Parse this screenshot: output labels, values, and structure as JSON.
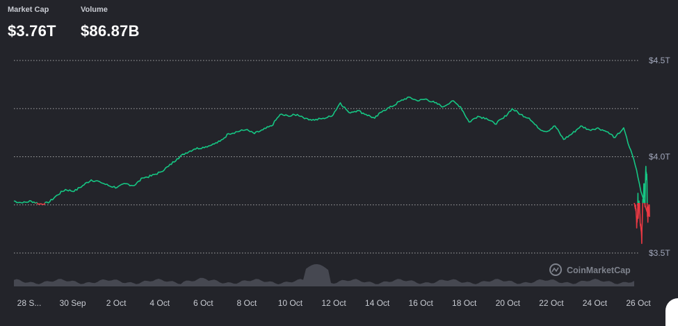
{
  "header": {
    "market_cap_label": "Market Cap",
    "market_cap_value": "$3.76T",
    "volume_label": "Volume",
    "volume_value": "$86.87B"
  },
  "watermark": "CoinMarketCap",
  "colors": {
    "up": "#16c784",
    "down": "#ea3943",
    "background": "#23242a",
    "grid": "#c8c8c8",
    "volume": "#4a4c55"
  },
  "chart_data": {
    "type": "line",
    "title": "",
    "xlabel": "",
    "ylabel": "",
    "x_tick_labels": [
      "28 S...",
      "30 Sep",
      "2 Oct",
      "4 Oct",
      "6 Oct",
      "8 Oct",
      "10 Oct",
      "12 Oct",
      "14 Oct",
      "16 Oct",
      "18 Oct",
      "20 Oct",
      "22 Oct",
      "24 Oct",
      "26 Oct"
    ],
    "y_tick_labels": [
      "$4.5T",
      "$4.0T",
      "$3.5T"
    ],
    "y_ticks": [
      4.5,
      4.0,
      3.5
    ],
    "ylim": [
      3.35,
      4.55
    ],
    "x_range": [
      0,
      29.6
    ],
    "baseline": 3.76,
    "grid": "horizontal dotted",
    "series": [
      {
        "values": [
          [
            0,
            3.77
          ],
          [
            0.4,
            3.76
          ],
          [
            0.8,
            3.77
          ],
          [
            1.2,
            3.755
          ],
          [
            1.6,
            3.76
          ],
          [
            2.0,
            3.8
          ],
          [
            2.4,
            3.83
          ],
          [
            2.8,
            3.82
          ],
          [
            3.2,
            3.85
          ],
          [
            3.6,
            3.88
          ],
          [
            4.0,
            3.87
          ],
          [
            4.4,
            3.85
          ],
          [
            4.8,
            3.84
          ],
          [
            5.2,
            3.86
          ],
          [
            5.6,
            3.85
          ],
          [
            6.0,
            3.89
          ],
          [
            6.4,
            3.9
          ],
          [
            6.8,
            3.92
          ],
          [
            7.2,
            3.95
          ],
          [
            7.6,
            3.99
          ],
          [
            8.0,
            4.02
          ],
          [
            8.4,
            4.04
          ],
          [
            8.8,
            4.05
          ],
          [
            9.2,
            4.06
          ],
          [
            9.6,
            4.08
          ],
          [
            10.0,
            4.12
          ],
          [
            10.4,
            4.13
          ],
          [
            10.8,
            4.14
          ],
          [
            11.2,
            4.12
          ],
          [
            11.6,
            4.14
          ],
          [
            12.0,
            4.16
          ],
          [
            12.4,
            4.22
          ],
          [
            12.8,
            4.21
          ],
          [
            13.2,
            4.22
          ],
          [
            13.6,
            4.2
          ],
          [
            14.0,
            4.19
          ],
          [
            14.4,
            4.2
          ],
          [
            14.8,
            4.21
          ],
          [
            15.2,
            4.28
          ],
          [
            15.6,
            4.23
          ],
          [
            16.0,
            4.24
          ],
          [
            16.4,
            4.22
          ],
          [
            16.8,
            4.2
          ],
          [
            17.2,
            4.24
          ],
          [
            17.6,
            4.26
          ],
          [
            18.0,
            4.29
          ],
          [
            18.4,
            4.31
          ],
          [
            18.8,
            4.29
          ],
          [
            19.2,
            4.3
          ],
          [
            19.6,
            4.28
          ],
          [
            20.0,
            4.26
          ],
          [
            20.4,
            4.29
          ],
          [
            20.8,
            4.26
          ],
          [
            21.2,
            4.18
          ],
          [
            21.6,
            4.21
          ],
          [
            22.0,
            4.2
          ],
          [
            22.4,
            4.17
          ],
          [
            22.8,
            4.2
          ],
          [
            23.2,
            4.25
          ],
          [
            23.6,
            4.22
          ],
          [
            24.0,
            4.2
          ],
          [
            24.4,
            4.15
          ],
          [
            24.8,
            4.13
          ],
          [
            25.2,
            4.16
          ],
          [
            25.6,
            4.09
          ],
          [
            26.0,
            4.12
          ],
          [
            26.4,
            4.16
          ],
          [
            26.8,
            4.14
          ],
          [
            27.2,
            4.15
          ],
          [
            27.6,
            4.13
          ],
          [
            28.0,
            4.1
          ],
          [
            28.4,
            4.15
          ],
          [
            28.6,
            4.07
          ],
          [
            28.8,
            4.01
          ],
          [
            29.0,
            3.93
          ],
          [
            29.2,
            3.82
          ],
          [
            29.35,
            3.77
          ],
          [
            29.5,
            3.71
          ],
          [
            29.6,
            3.69
          ]
        ]
      }
    ]
  }
}
